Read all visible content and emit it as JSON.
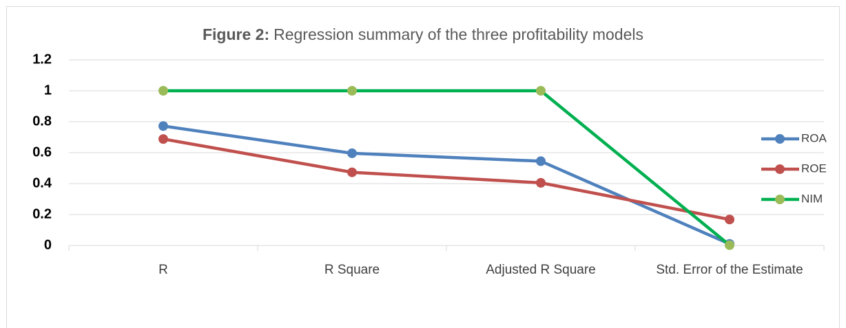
{
  "chart_data": {
    "type": "line",
    "figure_label": "Figure 2:",
    "title": "Regression summary of the three profitability models",
    "categories": [
      "R",
      "R Square",
      "Adjusted R Square",
      "Std. Error of the Estimate"
    ],
    "series": [
      {
        "name": "ROA",
        "color": "#4f81bd",
        "values": [
          0.772,
          0.596,
          0.545,
          0.01
        ]
      },
      {
        "name": "ROE",
        "color": "#c0504d",
        "values": [
          0.688,
          0.473,
          0.405,
          0.168
        ]
      },
      {
        "name": "NIM",
        "color": "#00b050",
        "marker_color": "#9bbb59",
        "values": [
          1,
          1,
          1,
          0.002
        ]
      }
    ],
    "ylim": [
      0,
      1.2
    ],
    "yticks": [
      0,
      0.2,
      0.4,
      0.6,
      0.8,
      1,
      1.2
    ],
    "grid": true,
    "legend": "right"
  }
}
